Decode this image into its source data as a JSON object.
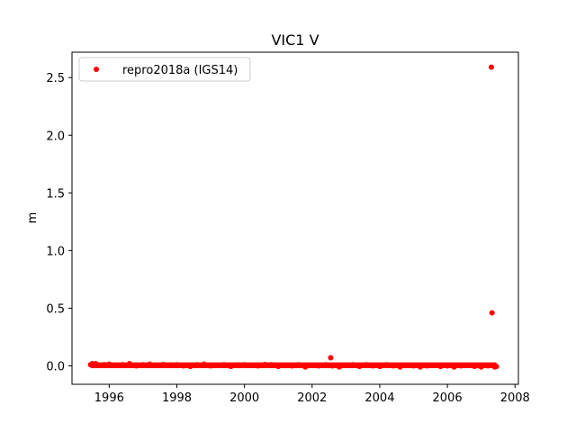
{
  "chart_data": {
    "type": "scatter",
    "title": "VIC1 V",
    "xlabel": "",
    "ylabel": "m",
    "xlim": [
      1994.9,
      2008.1
    ],
    "ylim": [
      -0.16,
      2.72
    ],
    "x_ticks": [
      1996,
      1998,
      2000,
      2002,
      2004,
      2006,
      2008
    ],
    "x_tick_labels": [
      "1996",
      "1998",
      "2000",
      "2002",
      "2004",
      "2006",
      "2008"
    ],
    "y_ticks": [
      0.0,
      0.5,
      1.0,
      1.5,
      2.0,
      2.5
    ],
    "y_tick_labels": [
      "0.0",
      "0.5",
      "1.0",
      "1.5",
      "2.0",
      "2.5"
    ],
    "grid": false,
    "legend_position": "top-left",
    "series": [
      {
        "name": "repro2018a (IGS14)",
        "color": "#ff0000",
        "marker": "dot",
        "x": [
          1995.45,
          1995.5,
          1995.55,
          1995.6,
          1995.7,
          1995.85,
          1996.0,
          1996.2,
          1996.4,
          1996.6,
          1996.8,
          1997.0,
          1997.2,
          1997.4,
          1997.6,
          1997.8,
          1998.0,
          1998.2,
          1998.4,
          1998.6,
          1998.8,
          1999.0,
          1999.2,
          1999.4,
          1999.6,
          1999.8,
          2000.0,
          2000.2,
          2000.4,
          2000.6,
          2000.8,
          2001.0,
          2001.2,
          2001.4,
          2001.6,
          2001.8,
          2002.0,
          2002.2,
          2002.4,
          2002.55,
          2002.6,
          2002.8,
          2003.0,
          2003.2,
          2003.4,
          2003.6,
          2003.8,
          2004.0,
          2004.2,
          2004.4,
          2004.6,
          2004.8,
          2005.0,
          2005.2,
          2005.4,
          2005.6,
          2005.8,
          2006.0,
          2006.2,
          2006.4,
          2006.6,
          2006.8,
          2007.0,
          2007.2,
          2007.3,
          2007.32,
          2007.4,
          2007.45
        ],
        "y": [
          0.01,
          0.02,
          0.015,
          0.02,
          0.005,
          0.01,
          0.015,
          0.005,
          0.01,
          0.02,
          0.0,
          0.01,
          0.015,
          0.005,
          0.012,
          0.008,
          0.01,
          0.0,
          -0.005,
          0.01,
          0.015,
          0.0,
          0.005,
          0.01,
          -0.005,
          0.008,
          0.01,
          0.005,
          0.0,
          0.012,
          0.01,
          -0.005,
          0.005,
          0.0,
          0.01,
          -0.01,
          0.005,
          0.0,
          0.01,
          0.07,
          0.0,
          -0.01,
          0.005,
          0.01,
          -0.005,
          0.01,
          0.0,
          -0.005,
          0.01,
          0.0,
          -0.01,
          0.005,
          0.0,
          -0.01,
          0.0,
          0.005,
          -0.005,
          0.0,
          -0.01,
          0.0,
          0.005,
          -0.005,
          -0.01,
          0.0,
          2.59,
          0.46,
          -0.01,
          -0.005
        ]
      }
    ]
  }
}
